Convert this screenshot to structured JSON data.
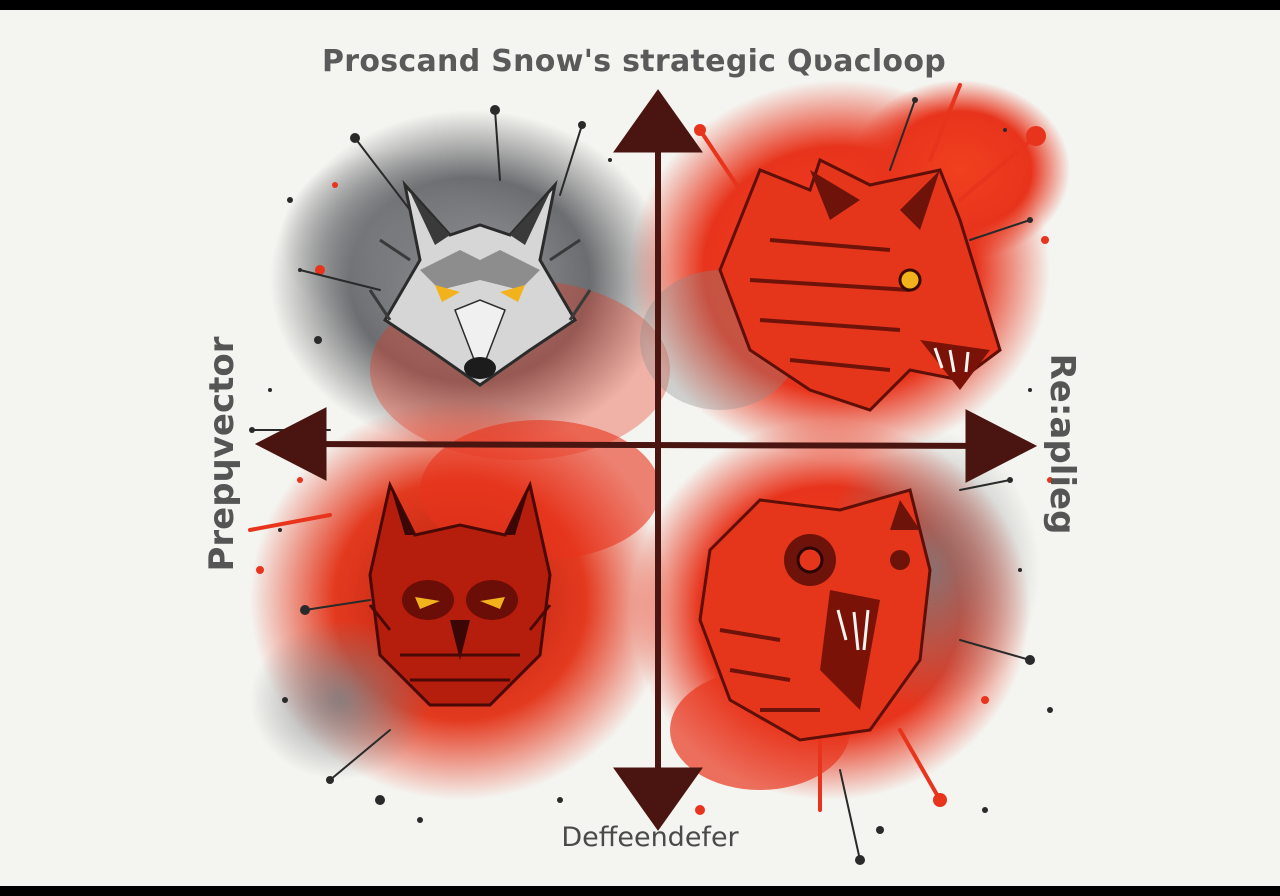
{
  "diagram": {
    "top_label": "Proscand Snow's strategic  Qʋacloop",
    "bottom_label": "Deffeendefer",
    "left_label": "Prepɥvector",
    "right_label": "Re:aplieg"
  },
  "quadrants": [
    {
      "position": "top-left",
      "animal": "wolf",
      "palette": "gray"
    },
    {
      "position": "top-right",
      "animal": "wolf-snarling",
      "palette": "red"
    },
    {
      "position": "bottom-left",
      "animal": "owl",
      "palette": "red"
    },
    {
      "position": "bottom-right",
      "animal": "owl-screeching",
      "palette": "red"
    }
  ],
  "colors": {
    "background": "#f4f4f0",
    "red": "#e8341c",
    "dark_red": "#7a1208",
    "gray": "#5f6062",
    "axis": "#4a1510"
  }
}
